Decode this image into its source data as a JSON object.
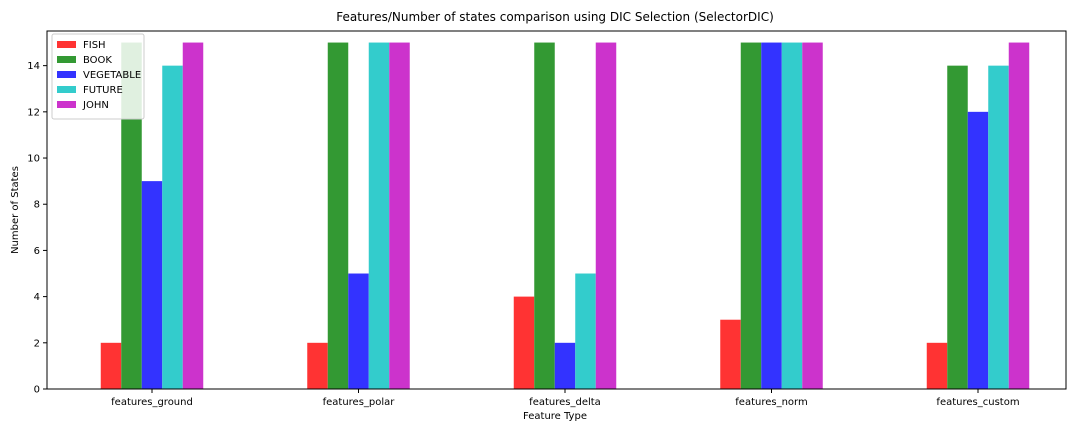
{
  "chart_data": {
    "type": "bar",
    "title": "Features/Number of states comparison using DIC Selection (SelectorDIC)",
    "xlabel": "Feature Type",
    "ylabel": "Number of States",
    "categories": [
      "features_ground",
      "features_polar",
      "features_delta",
      "features_norm",
      "features_custom"
    ],
    "series": [
      {
        "name": "FISH",
        "color": "#ff3333",
        "values": [
          2,
          2,
          4,
          3,
          2
        ]
      },
      {
        "name": "BOOK",
        "color": "#339933",
        "values": [
          15,
          15,
          15,
          15,
          14
        ]
      },
      {
        "name": "VEGETABLE",
        "color": "#3333ff",
        "values": [
          9,
          5,
          2,
          15,
          12
        ]
      },
      {
        "name": "FUTURE",
        "color": "#33cccc",
        "values": [
          14,
          15,
          5,
          15,
          14
        ]
      },
      {
        "name": "JOHN",
        "color": "#cc33cc",
        "values": [
          15,
          15,
          15,
          15,
          15
        ]
      }
    ],
    "ylim": [
      0,
      15.5
    ],
    "yticks": [
      0,
      2,
      4,
      6,
      8,
      10,
      12,
      14
    ],
    "grid": false,
    "legend_position": "top-left"
  }
}
